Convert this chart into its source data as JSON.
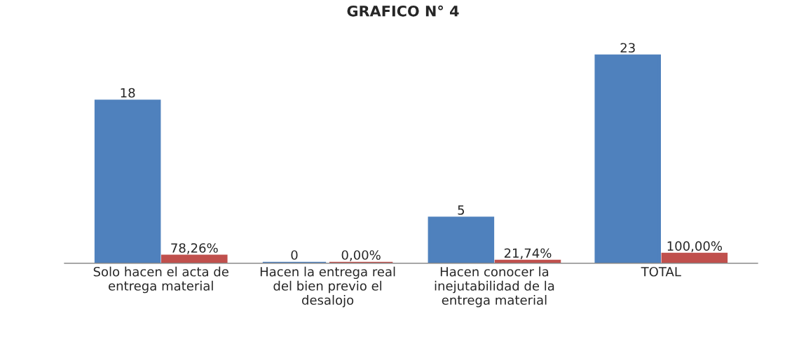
{
  "chart_data": {
    "type": "bar",
    "title": "GRAFICO N° 4",
    "categories": [
      "Solo hacen el acta de entrega material",
      "Hacen la entrega real del bien previo el desalojo",
      "Hacen conocer la inejutabilidad de la entrega material",
      "TOTAL"
    ],
    "series": [
      {
        "color": "#4f81bd",
        "values": [
          18,
          0,
          5,
          23
        ],
        "value_labels": [
          "18",
          "0",
          "5",
          "23"
        ]
      },
      {
        "color": "#c0504d",
        "values": [
          0.7826,
          0,
          0.2174,
          1
        ],
        "value_labels": [
          "78,26%",
          "0,00%",
          "21,74%",
          "100,00%"
        ]
      }
    ],
    "tick_labels": "x",
    "grid": false
  }
}
